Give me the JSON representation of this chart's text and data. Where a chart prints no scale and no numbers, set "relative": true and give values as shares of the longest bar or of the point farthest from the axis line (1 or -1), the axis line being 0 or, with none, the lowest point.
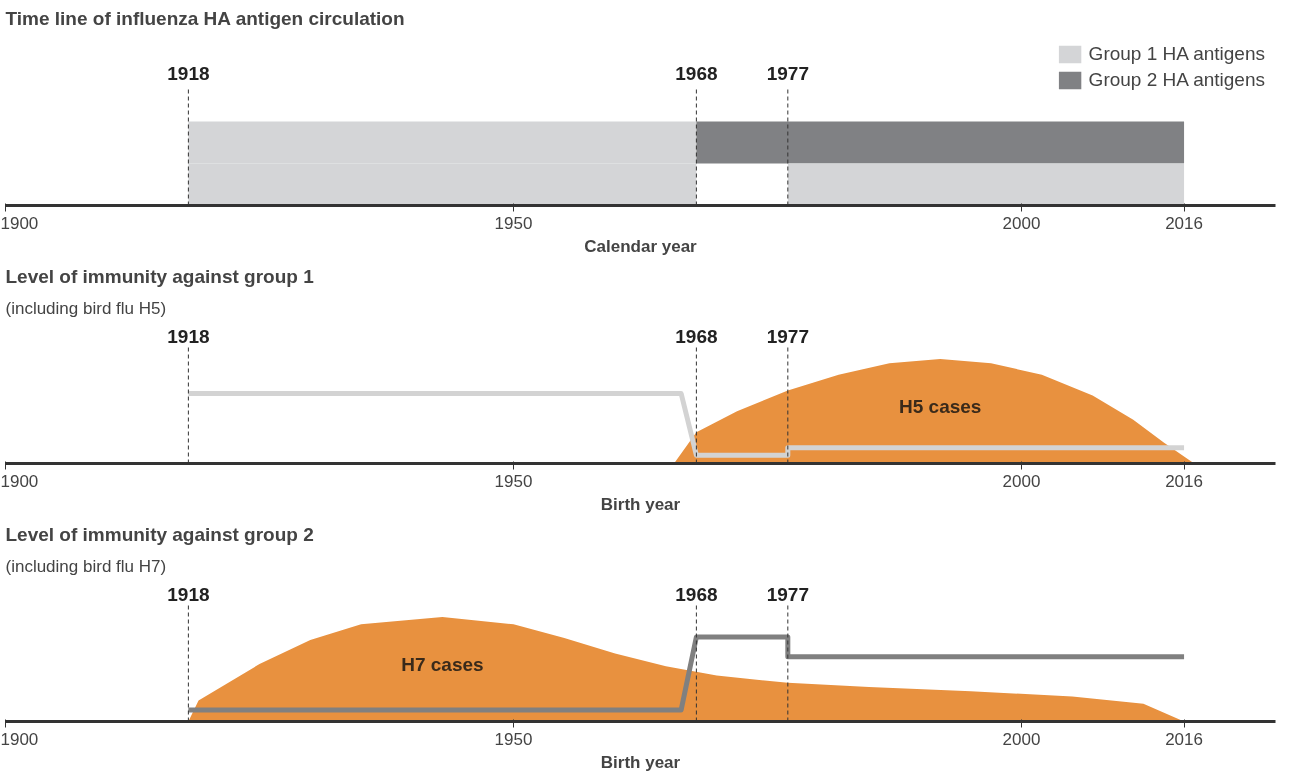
{
  "chart_data": [
    {
      "type": "bar",
      "orientation": "horizontal",
      "title": "Time line of influenza HA antigen circulation",
      "xlabel": "Calendar year",
      "categories": [
        null,
        null
      ],
      "series": [
        {
          "name": "Group 1 HA antigens",
          "color": "#d4d5d7",
          "values": [
            50,
            50
          ],
          "base": [
            1918,
            1918
          ]
        },
        {
          "name": "Group 2 HA antigens",
          "color": "#808184",
          "values": [
            48,
            null
          ],
          "base": [
            1968,
            null
          ]
        },
        {
          "color": "#d4d5d7",
          "values": [
            null,
            39
          ],
          "base": [
            null,
            1977
          ]
        }
      ],
      "xlim": [
        1900,
        2025
      ],
      "xticks": [
        1900,
        1950,
        2000,
        2016
      ],
      "ref_lines": [
        {
          "axis": "x",
          "value": 1918,
          "label": "1918",
          "line_style": "dashed"
        },
        {
          "axis": "x",
          "value": 1968,
          "label": "1968",
          "line_style": "dashed"
        },
        {
          "axis": "x",
          "value": 1977,
          "label": "1977",
          "line_style": "dashed"
        }
      ],
      "legend": "top right",
      "tick_labels": "x"
    },
    {
      "type": "line",
      "relative": true,
      "title": "Level of immunity against group 1",
      "subtitle": "(including bird flu H5)",
      "xlabel": "Birth year",
      "series": [
        {
          "type": "area",
          "name": "H5 cases",
          "color": "#e8913f",
          "x": [
            1965.8,
            1968,
            1972,
            1977,
            1982,
            1987,
            1992,
            1997,
            2002,
            2007,
            2011,
            2014,
            2017
          ],
          "values": [
            0,
            0.3,
            0.5,
            0.7,
            0.85,
            0.96,
            1.0,
            0.96,
            0.85,
            0.65,
            0.42,
            0.2,
            0
          ]
        },
        {
          "color": "#d3d3d3",
          "x": [
            1918,
            1966.5,
            1968,
            1977,
            1977,
            2016
          ],
          "values": [
            0.67,
            0.67,
            0.08,
            0.08,
            0.15,
            0.15
          ]
        }
      ],
      "xlim": [
        1900,
        2025
      ],
      "xticks": [
        1900,
        1950,
        2000,
        2016
      ],
      "ref_lines": [
        {
          "axis": "x",
          "value": 1918,
          "label": "1918",
          "line_style": "dashed"
        },
        {
          "axis": "x",
          "value": 1968,
          "label": "1968",
          "line_style": "dashed"
        },
        {
          "axis": "x",
          "value": 1977,
          "label": "1977",
          "line_style": "dashed"
        }
      ]
    },
    {
      "type": "line",
      "relative": true,
      "title": "Level of immunity against group 2",
      "subtitle": "(including bird flu H7)",
      "xlabel": "Birth year",
      "series": [
        {
          "type": "area",
          "name": "H7 cases",
          "color": "#e8913f",
          "x": [
            1918,
            1919,
            1925,
            1930,
            1935,
            1943,
            1950,
            1955,
            1960,
            1965,
            1970,
            1977,
            1985,
            1995,
            2005,
            2012,
            2016
          ],
          "values": [
            0,
            0.2,
            0.55,
            0.78,
            0.93,
            1.0,
            0.93,
            0.8,
            0.65,
            0.53,
            0.44,
            0.37,
            0.33,
            0.29,
            0.24,
            0.17,
            0
          ]
        },
        {
          "color": "#808080",
          "x": [
            1918,
            1966.5,
            1968,
            1977,
            1977,
            2016
          ],
          "values": [
            0.11,
            0.11,
            0.81,
            0.81,
            0.62,
            0.62
          ]
        }
      ],
      "xlim": [
        1900,
        2025
      ],
      "xticks": [
        1900,
        1950,
        2000,
        2016
      ],
      "ref_lines": [
        {
          "axis": "x",
          "value": 1918,
          "label": "1918",
          "line_style": "dashed"
        },
        {
          "axis": "x",
          "value": 1968,
          "label": "1968",
          "line_style": "dashed"
        },
        {
          "axis": "x",
          "value": 1977,
          "label": "1977",
          "line_style": "dashed"
        }
      ]
    }
  ]
}
